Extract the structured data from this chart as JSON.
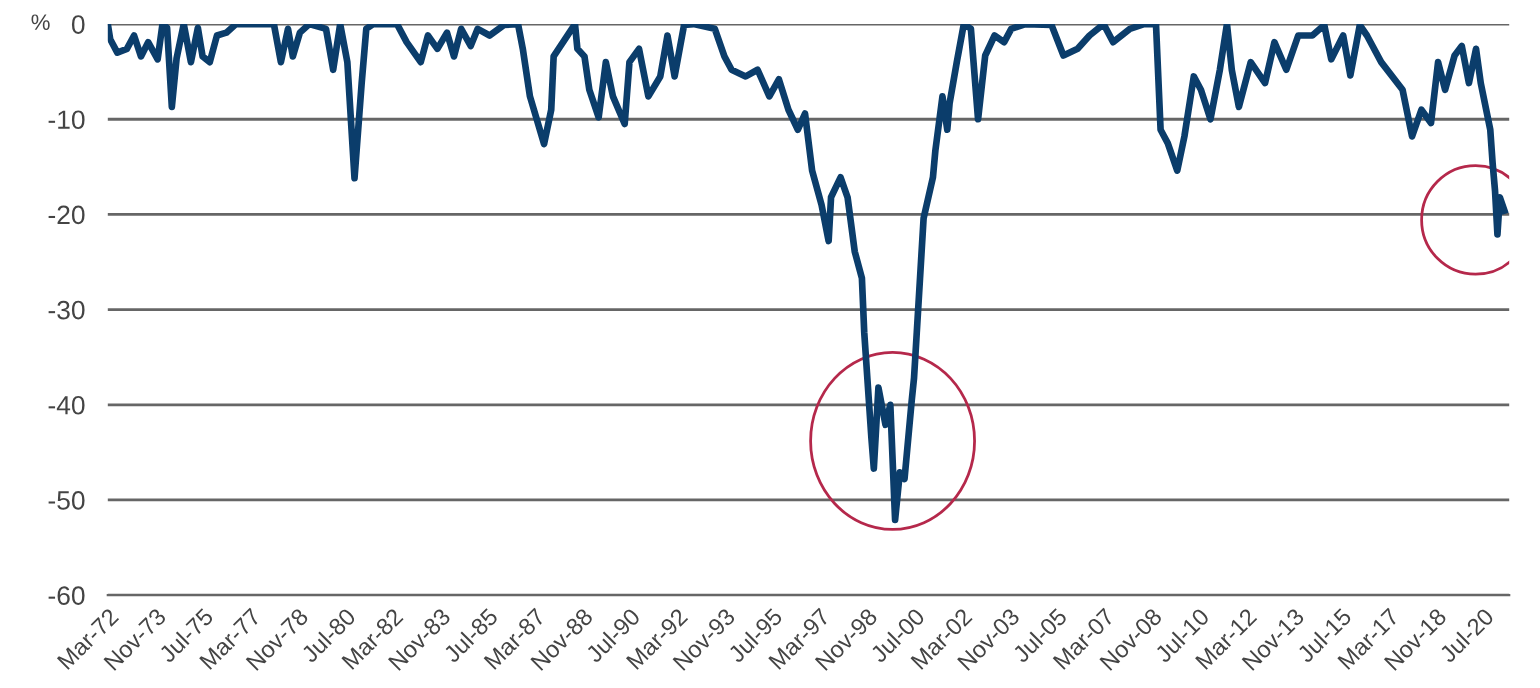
{
  "chart_data": {
    "type": "line",
    "ylabel": "%",
    "x": [
      "1972-03",
      "1972-04",
      "1972-07",
      "1972-11",
      "1973-02",
      "1973-05",
      "1973-08",
      "1973-12",
      "1974-02",
      "1974-04",
      "1974-06",
      "1974-08",
      "1974-11",
      "1975-02",
      "1975-05",
      "1975-07",
      "1975-10",
      "1976-01",
      "1976-05",
      "1976-09",
      "1978-01",
      "1978-04",
      "1978-07",
      "1978-09",
      "1978-12",
      "1979-04",
      "1979-11",
      "1980-02",
      "1980-05",
      "1980-08",
      "1980-11",
      "1981-02",
      "1981-04",
      "1981-07",
      "1982-05",
      "1982-09",
      "1983-03",
      "1983-06",
      "1983-10",
      "1984-02",
      "1984-05",
      "1984-08",
      "1984-12",
      "1985-03",
      "1985-08",
      "1986-02",
      "1986-08",
      "1986-10",
      "1987-01",
      "1987-07",
      "1987-10",
      "1987-11",
      "1988-03",
      "1988-08",
      "1988-09",
      "1988-12",
      "1989-02",
      "1989-06",
      "1989-09",
      "1989-12",
      "1990-05",
      "1990-07",
      "1990-11",
      "1991-03",
      "1991-08",
      "1991-11",
      "1992-02",
      "1992-06",
      "1992-10",
      "1993-07",
      "1993-11",
      "1994-02",
      "1994-08",
      "1995-01",
      "1995-06",
      "1995-10",
      "1996-02",
      "1996-06",
      "1996-09",
      "1996-12",
      "1997-04",
      "1997-07",
      "1997-08",
      "1997-12",
      "1998-03",
      "1998-06",
      "1998-09",
      "1998-10",
      "1999-01",
      "1999-02",
      "1999-04",
      "1999-07",
      "1999-09",
      "1999-11",
      "2000-01",
      "2000-03",
      "2000-06",
      "2000-07",
      "2000-08",
      "2000-11",
      "2001-03",
      "2001-04",
      "2001-07",
      "2001-09",
      "2001-10",
      "2002-01",
      "2002-04",
      "2002-07",
      "2002-10",
      "2003-01",
      "2003-05",
      "2003-09",
      "2003-12",
      "2004-06",
      "2005-05",
      "2005-10",
      "2006-04",
      "2006-09",
      "2007-03",
      "2007-07",
      "2008-02",
      "2008-08",
      "2009-01",
      "2009-03",
      "2009-06",
      "2009-10",
      "2010-01",
      "2010-05",
      "2010-08",
      "2010-12",
      "2011-04",
      "2011-07",
      "2011-09",
      "2011-12",
      "2012-05",
      "2012-11",
      "2013-03",
      "2013-08",
      "2014-01",
      "2014-07",
      "2014-12",
      "2015-03",
      "2015-08",
      "2015-11",
      "2016-03",
      "2016-06",
      "2016-12",
      "2017-09",
      "2018-01",
      "2018-05",
      "2018-09",
      "2018-12",
      "2019-03",
      "2019-07",
      "2019-10",
      "2020-01",
      "2020-04",
      "2020-06",
      "2020-10",
      "2020-11",
      "2020-12",
      "2021-01",
      "2021-02",
      "2021-04"
    ],
    "series": [
      {
        "color": "#0b3d6b",
        "values": [
          0,
          -1.6,
          -3,
          -2.6,
          -1.2,
          -3.4,
          -1.9,
          -3.7,
          0,
          -0.4,
          -8.7,
          -3.6,
          0,
          -4,
          -0.4,
          -3.4,
          -4,
          -1.2,
          -0.9,
          0,
          0,
          -4,
          -0.5,
          -3.4,
          -0.9,
          0,
          -0.5,
          -4.8,
          0,
          -4,
          -16.2,
          -6.2,
          -0.5,
          0,
          0,
          -1.9,
          -4,
          -1.2,
          -2.6,
          -0.9,
          -3.4,
          -0.5,
          -2.3,
          -0.5,
          -1.2,
          -0.1,
          0,
          -2.6,
          -7.6,
          -12.6,
          -9,
          -3.4,
          -1.9,
          0,
          -2.6,
          -3.4,
          -6.9,
          -9.8,
          -4,
          -7.6,
          -10.5,
          -4,
          -2.6,
          -7.6,
          -5.5,
          -1.2,
          -5.5,
          -0.1,
          0,
          -0.5,
          -3.4,
          -4.8,
          -5.5,
          -4.8,
          -7.6,
          -5.8,
          -9,
          -11.1,
          -9.4,
          -15.4,
          -19,
          -22.8,
          -18.2,
          -16.1,
          -18.2,
          -23.9,
          -26.7,
          -32.4,
          -43.5,
          -46.7,
          -38.2,
          -42.1,
          -40,
          -52.1,
          -47.1,
          -47.8,
          -39.6,
          -37.2,
          -33,
          -20.4,
          -16.1,
          -13.3,
          -7.6,
          -11.1,
          -8.3,
          -4,
          0,
          -0.5,
          -10,
          -3.3,
          -1.2,
          -1.9,
          -0.5,
          0,
          -0.1,
          -3.3,
          -2.6,
          -1.2,
          0,
          -1.9,
          -0.5,
          0,
          0,
          -11.1,
          -12.5,
          -15.4,
          -11.8,
          -5.5,
          -6.9,
          -10,
          -4.8,
          0,
          -4.8,
          -8.7,
          -4,
          -6.2,
          -1.9,
          -4.8,
          -1.2,
          -1.2,
          -0.1,
          -3.7,
          -1.2,
          -5.4,
          -0.1,
          -1.2,
          -4,
          -6.9,
          -11.8,
          -9,
          -10.4,
          -4,
          -6.9,
          -3.3,
          -2.3,
          -6.2,
          -2.6,
          -6.2,
          -11.1,
          -14.7,
          -17.5,
          -22.1,
          -18.2,
          -19.6
        ]
      }
    ],
    "xlim": [
      "1972-03",
      "2021-06"
    ],
    "xticks": [
      {
        "value": "1972-03",
        "label": "Mar-72"
      },
      {
        "value": "1973-11",
        "label": "Nov-73"
      },
      {
        "value": "1975-07",
        "label": "Jul-75"
      },
      {
        "value": "1977-03",
        "label": "Mar-77"
      },
      {
        "value": "1978-11",
        "label": "Nov-78"
      },
      {
        "value": "1980-07",
        "label": "Jul-80"
      },
      {
        "value": "1982-03",
        "label": "Mar-82"
      },
      {
        "value": "1983-11",
        "label": "Nov-83"
      },
      {
        "value": "1985-07",
        "label": "Jul-85"
      },
      {
        "value": "1987-03",
        "label": "Mar-87"
      },
      {
        "value": "1988-11",
        "label": "Nov-88"
      },
      {
        "value": "1990-07",
        "label": "Jul-90"
      },
      {
        "value": "1992-03",
        "label": "Mar-92"
      },
      {
        "value": "1993-11",
        "label": "Nov-93"
      },
      {
        "value": "1995-07",
        "label": "Jul-95"
      },
      {
        "value": "1997-03",
        "label": "Mar-97"
      },
      {
        "value": "1998-11",
        "label": "Nov-98"
      },
      {
        "value": "2000-07",
        "label": "Jul-00"
      },
      {
        "value": "2002-03",
        "label": "Mar-02"
      },
      {
        "value": "2003-11",
        "label": "Nov-03"
      },
      {
        "value": "2005-07",
        "label": "Jul-05"
      },
      {
        "value": "2007-03",
        "label": "Mar-07"
      },
      {
        "value": "2008-11",
        "label": "Nov-08"
      },
      {
        "value": "2010-07",
        "label": "Jul-10"
      },
      {
        "value": "2012-03",
        "label": "Mar-12"
      },
      {
        "value": "2013-11",
        "label": "Nov-13"
      },
      {
        "value": "2015-07",
        "label": "Jul-15"
      },
      {
        "value": "2017-03",
        "label": "Mar-17"
      },
      {
        "value": "2018-11",
        "label": "Nov-18"
      },
      {
        "value": "2020-07",
        "label": "Jul-20"
      }
    ],
    "ylim": [
      -60,
      0
    ],
    "yticks": [
      -60,
      -50,
      -40,
      -30,
      -20,
      -10,
      0
    ],
    "grid": "y",
    "marker": "none",
    "line_style": "solid"
  }
}
